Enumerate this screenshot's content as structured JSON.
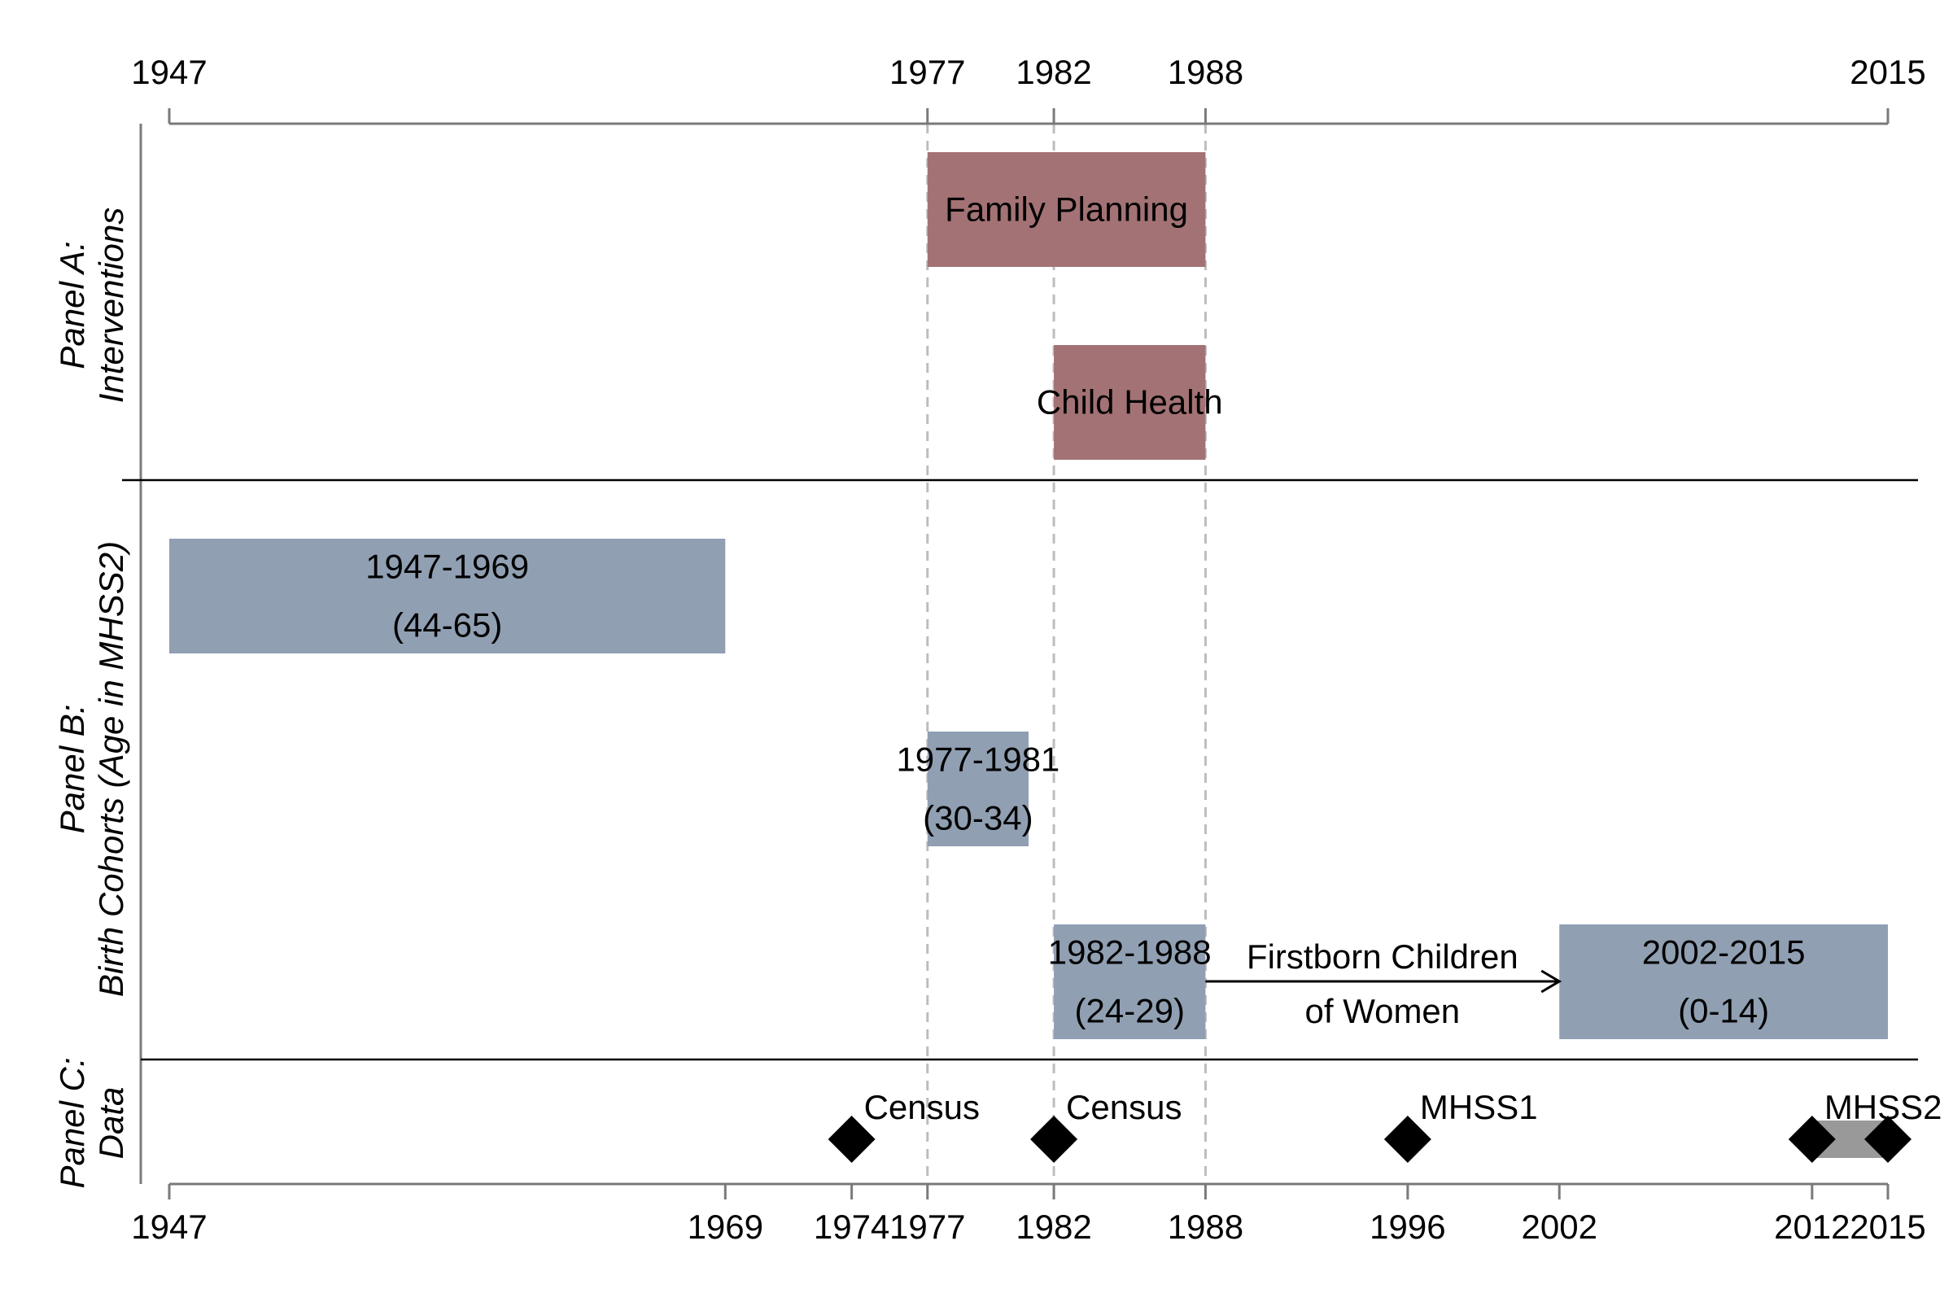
{
  "years_top": [
    1947,
    1977,
    1982,
    1988,
    2015
  ],
  "years_bottom": [
    1947,
    1969,
    1974,
    1977,
    1982,
    1988,
    1996,
    2002,
    2012,
    2015
  ],
  "guide_years": [
    1977,
    1982,
    1988
  ],
  "panels": {
    "a": {
      "line1": "Panel A:",
      "line2": "Interventions"
    },
    "b": {
      "line1": "Panel B:",
      "line2": "Birth Cohorts (Age in MHSS2)"
    },
    "c": {
      "line1": "Panel C:",
      "line2": "Data"
    }
  },
  "interventions": [
    {
      "label": "Family Planning",
      "start": 1977,
      "end": 1988,
      "color": "#a37274"
    },
    {
      "label": "Child Health",
      "start": 1982,
      "end": 1988,
      "color": "#a37274"
    }
  ],
  "cohorts": [
    {
      "line1": "1947-1969",
      "line2": "(44-65)",
      "start": 1947,
      "end": 1969,
      "color": "#909fb2"
    },
    {
      "line1": "1977-1981",
      "line2": "(30-34)",
      "start": 1977,
      "end": 1981,
      "color": "#909fb2"
    },
    {
      "line1": "1982-1988",
      "line2": "(24-29)",
      "start": 1982,
      "end": 1988,
      "color": "#909fb2"
    },
    {
      "line1": "2002-2015",
      "line2": "(0-14)",
      "start": 2002,
      "end": 2015,
      "color": "#909fb2"
    }
  ],
  "arrow": {
    "from": 1988,
    "to": 2002,
    "line1": "Firstborn Children",
    "line2": "of Women"
  },
  "data_points": [
    {
      "label": "Census",
      "year": 1974
    },
    {
      "label": "Census",
      "year": 1982
    },
    {
      "label": "MHSS1",
      "year": 1996
    },
    {
      "label": "MHSS2",
      "year": 2012,
      "end": 2015
    }
  ],
  "colors": {
    "span": "#999999",
    "marker": "#000000"
  }
}
